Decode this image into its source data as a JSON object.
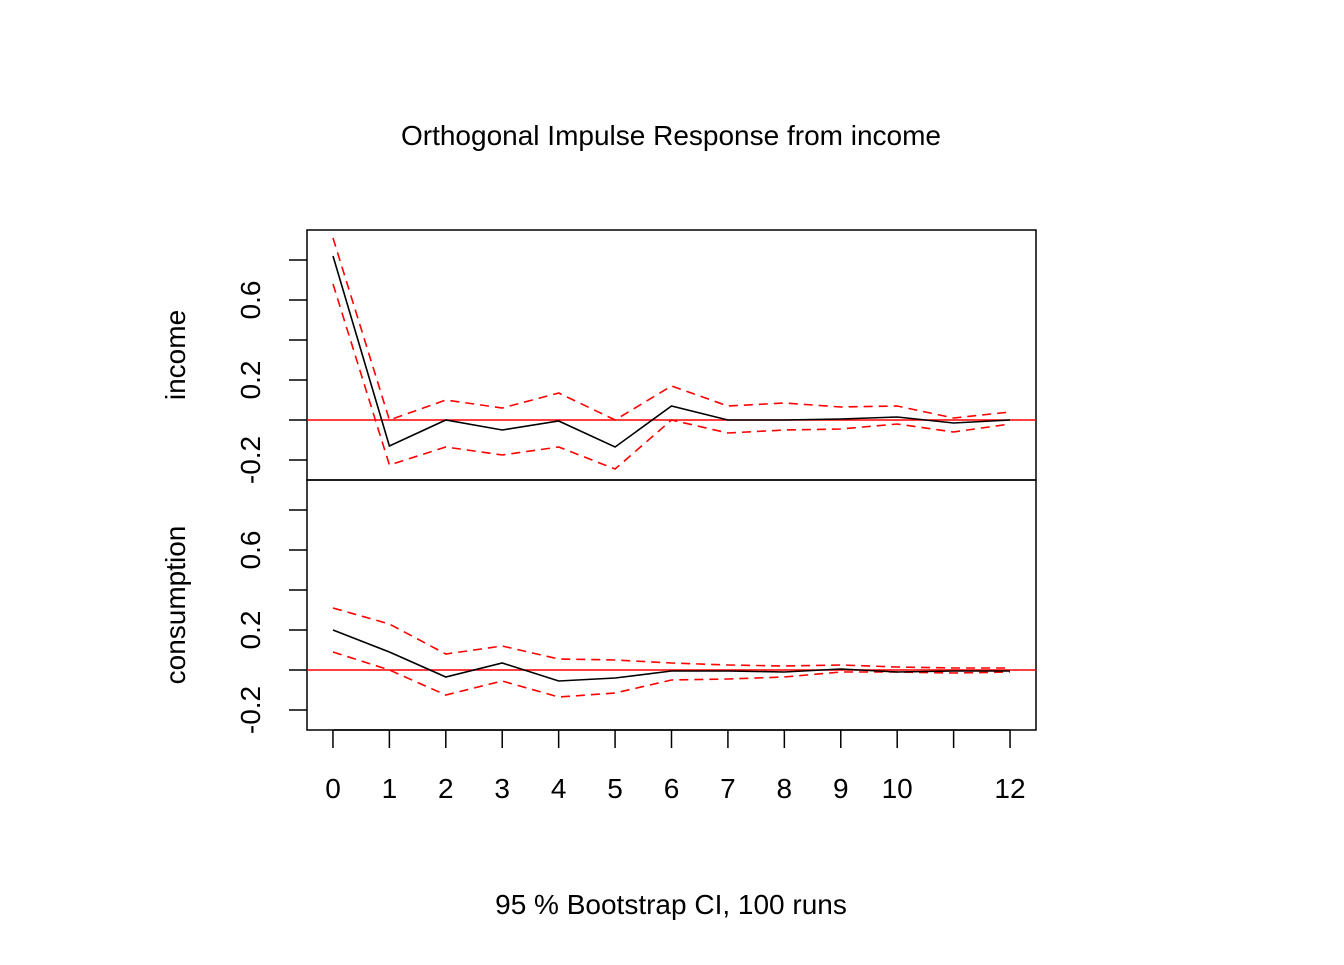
{
  "chart_data": {
    "type": "line",
    "title": "Orthogonal Impulse Response from income",
    "subtitle": "95 % Bootstrap CI,  100 runs",
    "x": [
      0,
      1,
      2,
      3,
      4,
      5,
      6,
      7,
      8,
      9,
      10,
      11,
      12
    ],
    "xlim": [
      -0.46,
      12.46
    ],
    "x_tick_values": [
      0,
      1,
      2,
      3,
      4,
      5,
      6,
      7,
      8,
      9,
      10,
      11,
      12
    ],
    "x_tick_labels": [
      "0",
      "1",
      "2",
      "3",
      "4",
      "5",
      "6",
      "7",
      "8",
      "9",
      "10",
      "",
      "12"
    ],
    "ylim": [
      -0.3,
      0.95
    ],
    "y_tick_values": [
      -0.2,
      0.0,
      0.2,
      0.4,
      0.6,
      0.8
    ],
    "y_tick_labels": [
      "-0.2",
      "",
      "0.2",
      "",
      "0.6",
      ""
    ],
    "zero_line_color": "#ff0000",
    "response_color": "#000000",
    "ci_color": "#ff0000",
    "panels": [
      {
        "ylabel": "income",
        "response": [
          0.82,
          -0.13,
          0.0,
          -0.05,
          -0.005,
          -0.135,
          0.07,
          0.0,
          0.0,
          0.005,
          0.015,
          -0.015,
          0.0
        ],
        "upper": [
          0.91,
          0.0,
          0.1,
          0.06,
          0.135,
          0.0,
          0.17,
          0.07,
          0.085,
          0.065,
          0.07,
          0.01,
          0.04
        ],
        "lower": [
          0.68,
          -0.225,
          -0.135,
          -0.175,
          -0.135,
          -0.245,
          0.0,
          -0.065,
          -0.05,
          -0.045,
          -0.02,
          -0.06,
          -0.02
        ]
      },
      {
        "ylabel": "consumption",
        "response": [
          0.2,
          0.09,
          -0.035,
          0.035,
          -0.055,
          -0.04,
          -0.005,
          -0.005,
          -0.01,
          0.005,
          -0.01,
          -0.005,
          -0.005
        ],
        "upper": [
          0.31,
          0.23,
          0.08,
          0.12,
          0.055,
          0.05,
          0.035,
          0.025,
          0.02,
          0.025,
          0.015,
          0.01,
          0.01
        ],
        "lower": [
          0.09,
          0.0,
          -0.125,
          -0.055,
          -0.135,
          -0.115,
          -0.05,
          -0.045,
          -0.035,
          -0.01,
          -0.01,
          -0.015,
          -0.01
        ]
      }
    ]
  }
}
